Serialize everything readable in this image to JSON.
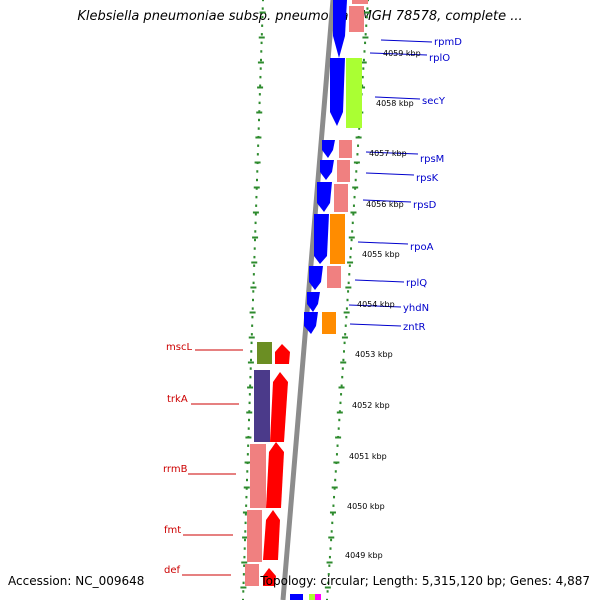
{
  "title": "Klebsiella pneumoniae subsp. pneumoniae MGH 78578, complete ...",
  "footer": {
    "accession": "Accession: NC_009648",
    "summary": "Topology: circular; Length: 5,315,120 bp; Genes: 4,887"
  },
  "colors": {
    "backbone": "#8c8c8c",
    "forward_label": "#0000cc",
    "reverse_label": "#cc0000",
    "ruler_dots": "#2e8b2e",
    "ruler_label": "#000000"
  },
  "forward_genes": [
    {
      "label": "rpmD",
      "color": "#0000ff"
    },
    {
      "label": "rplO",
      "color": "#0000ff"
    },
    {
      "label": "secY",
      "color": "#0000ff"
    },
    {
      "label": "rpsM",
      "color": "#0000ff"
    },
    {
      "label": "rpsK",
      "color": "#0000ff"
    },
    {
      "label": "rpsD",
      "color": "#0000ff"
    },
    {
      "label": "rpoA",
      "color": "#0000ff"
    },
    {
      "label": "rplQ",
      "color": "#0000ff"
    },
    {
      "label": "yhdN",
      "color": "#0000ff"
    },
    {
      "label": "zntR",
      "color": "#0000ff"
    }
  ],
  "reverse_genes": [
    {
      "label": "mscL",
      "color": "#ff0000"
    },
    {
      "label": "trkA",
      "color": "#ff0000"
    },
    {
      "label": "rrmB",
      "color": "#ff0000"
    },
    {
      "label": "fmt",
      "color": "#ff0000"
    },
    {
      "label": "def",
      "color": "#ff0000"
    }
  ],
  "ruler_labels_top": [
    "4059 kbp",
    "4058 kbp",
    "4057 kbp",
    "4056 kbp",
    "4055 kbp",
    "4054 kbp"
  ],
  "ruler_labels_bottom": [
    "4053 kbp",
    "4052 kbp",
    "4051 kbp",
    "4050 kbp",
    "4049 kbp"
  ]
}
